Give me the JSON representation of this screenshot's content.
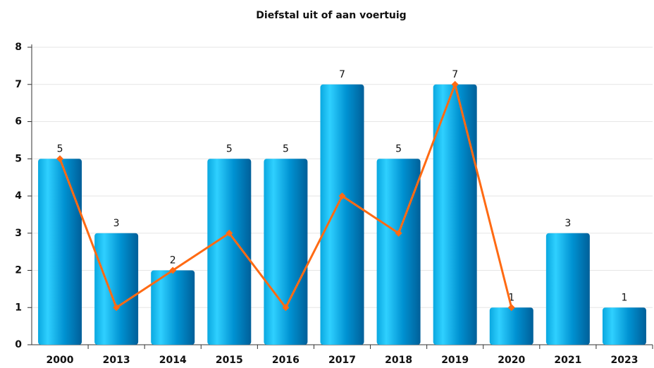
{
  "chart_data": {
    "type": "bar",
    "title": "Diefstal uit of aan voertuig",
    "categories": [
      "2000",
      "2013",
      "2014",
      "2015",
      "2016",
      "2017",
      "2018",
      "2019",
      "2020",
      "2021",
      "2023"
    ],
    "series": [
      {
        "type": "bar",
        "color": "#0090d0",
        "values": [
          5,
          3,
          2,
          5,
          5,
          7,
          5,
          7,
          1,
          3,
          1
        ]
      },
      {
        "type": "line",
        "color": "#ff6a13",
        "values": [
          5,
          1,
          2,
          3,
          1,
          4,
          3,
          7,
          1,
          null,
          null
        ]
      }
    ],
    "ylim": [
      0,
      8
    ],
    "yticks": [
      0,
      1,
      2,
      3,
      4,
      5,
      6,
      7,
      8
    ],
    "grid": true
  }
}
